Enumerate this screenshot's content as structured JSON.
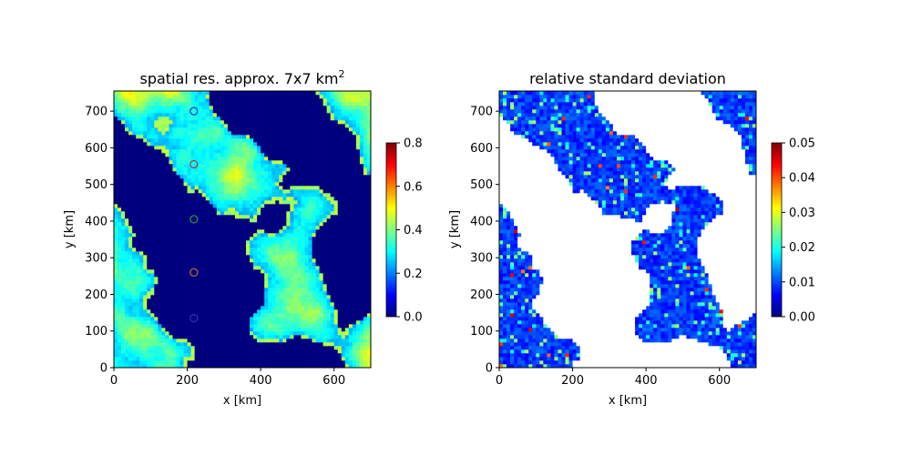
{
  "colormap": {
    "name": "jet",
    "stops": [
      "#00007f",
      "#0000ff",
      "#007fff",
      "#00ffff",
      "#7fff7f",
      "#ffff00",
      "#ff7f00",
      "#ff0000",
      "#7f0000"
    ]
  },
  "background_color": "#ffffff",
  "chart_data": [
    {
      "type": "heatmap",
      "title_main": "spatial res. approx. 7x7 km",
      "title_sup": "2",
      "xlabel": "x [km]",
      "ylabel": "y [km]",
      "xlim": [
        0,
        700
      ],
      "ylim": [
        0,
        755
      ],
      "xticks": [
        "0",
        "200",
        "400",
        "600"
      ],
      "xtick_values": [
        0,
        200,
        400,
        600
      ],
      "yticks": [
        "0",
        "100",
        "200",
        "300",
        "400",
        "500",
        "600",
        "700"
      ],
      "ytick_values": [
        0,
        100,
        200,
        300,
        400,
        500,
        600,
        700
      ],
      "colorbar": {
        "min": 0.0,
        "max": 0.8,
        "ticks": [
          "0.0",
          "0.2",
          "0.4",
          "0.6",
          "0.8"
        ],
        "tick_values": [
          0.0,
          0.2,
          0.4,
          0.6,
          0.8
        ]
      },
      "markers": [
        {
          "x": 218,
          "y": 700,
          "color": "#3030c0"
        },
        {
          "x": 218,
          "y": 555,
          "color": "#c03030"
        },
        {
          "x": 218,
          "y": 405,
          "color": "#30a030"
        },
        {
          "x": 218,
          "y": 260,
          "color": "#c07030"
        },
        {
          "x": 218,
          "y": 135,
          "color": "#3030c0"
        }
      ]
    },
    {
      "type": "heatmap",
      "title_main": "relative standard deviation",
      "title_sup": "",
      "xlabel": "x [km]",
      "ylabel": "y [km]",
      "xlim": [
        0,
        700
      ],
      "ylim": [
        0,
        755
      ],
      "xticks": [
        "0",
        "200",
        "400",
        "600"
      ],
      "xtick_values": [
        0,
        200,
        400,
        600
      ],
      "yticks": [
        "0",
        "100",
        "200",
        "300",
        "400",
        "500",
        "600",
        "700"
      ],
      "ytick_values": [
        0,
        100,
        200,
        300,
        400,
        500,
        600,
        700
      ],
      "colorbar": {
        "min": 0.0,
        "max": 0.05,
        "ticks": [
          "0.00",
          "0.01",
          "0.02",
          "0.03",
          "0.04",
          "0.05"
        ],
        "tick_values": [
          0.0,
          0.01,
          0.02,
          0.03,
          0.04,
          0.05
        ]
      },
      "markers": []
    }
  ]
}
